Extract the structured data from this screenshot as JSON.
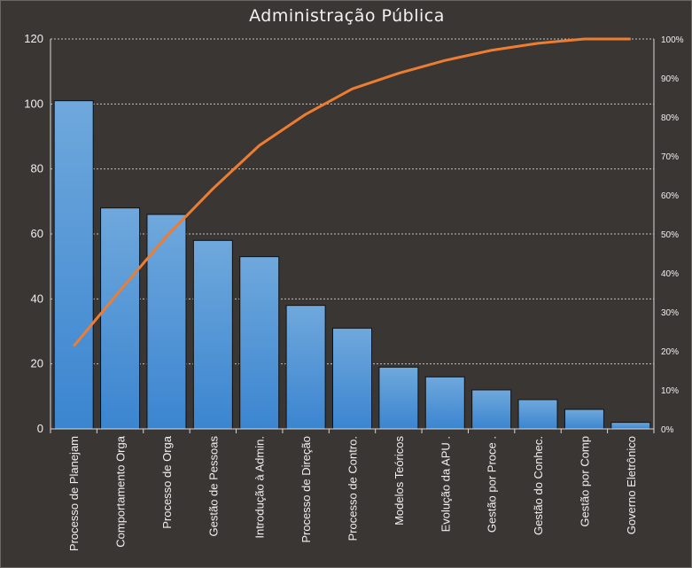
{
  "chart_data": {
    "type": "bar",
    "title": "Administração Pública",
    "categories": [
      "Processo de Planejam",
      "Comportamento  Orga",
      "Processo de Orga",
      "Gestão de Pessoas",
      "Introdução  à Admin.",
      "Processo de Direção",
      "Processo de Contro.",
      "Modelos Teóricos",
      "Evolução da APU .",
      "Gestão por Proce .",
      "Gestão do Conhec.",
      "Gestão por Comp",
      "Governo Eletrônico"
    ],
    "series": [
      {
        "type": "bar",
        "axis": "left",
        "values": [
          101,
          68,
          66,
          58,
          53,
          38,
          31,
          19,
          16,
          12,
          9,
          6,
          2
        ]
      },
      {
        "type": "line",
        "axis": "right",
        "values": [
          21.2,
          35.5,
          49.4,
          61.6,
          72.7,
          80.7,
          87.2,
          91.2,
          94.5,
          97.1,
          98.9,
          100,
          100
        ]
      }
    ],
    "y_axis": {
      "min": 0,
      "max": 120,
      "step": 20,
      "ticks": [
        "0",
        "20",
        "40",
        "60",
        "80",
        "100",
        "120"
      ]
    },
    "y2_axis": {
      "min": 0,
      "max": 100,
      "step": 10,
      "ticks": [
        "0%",
        "10%",
        "20%",
        "30%",
        "40%",
        "50%",
        "60%",
        "70%",
        "80%",
        "90%",
        "100%"
      ]
    },
    "grid": true,
    "legend": "none",
    "colors": {
      "background": "#3a3634",
      "bar_fill_top": "#6fa8dc",
      "bar_fill_bottom": "#3b85d0",
      "bar_stroke": "#111111",
      "line": "#ed7d31",
      "gridline": "#bfbfbf",
      "text": "#f0f0f0"
    }
  }
}
